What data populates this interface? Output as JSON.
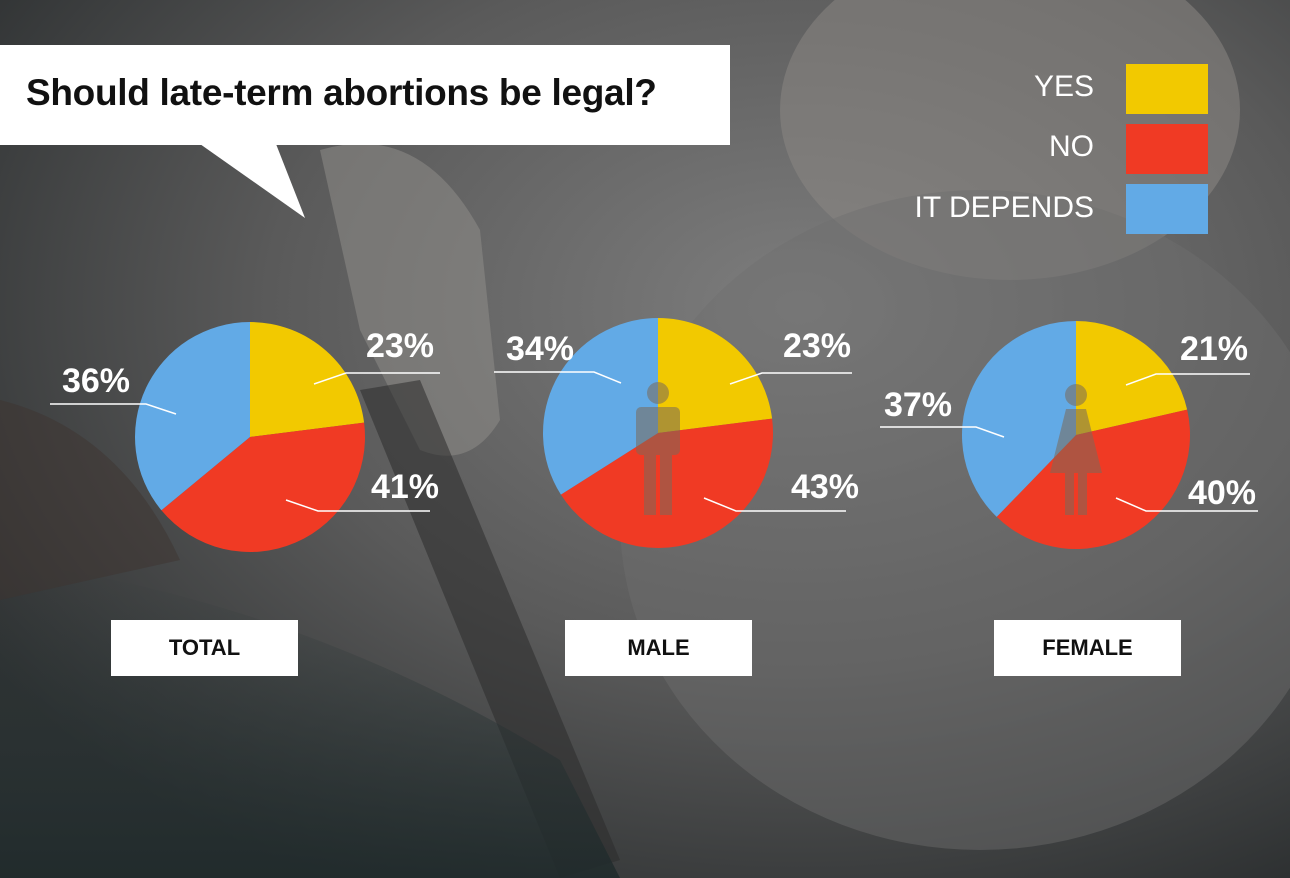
{
  "question": "Should late-term abortions be legal?",
  "legend": [
    {
      "label": "YES",
      "color": "#f2c900"
    },
    {
      "label": "NO",
      "color": "#f03a24"
    },
    {
      "label": "IT DEPENDS",
      "color": "#62aae6"
    }
  ],
  "chart_data": [
    {
      "type": "pie",
      "category": "TOTAL",
      "labels": [
        "YES",
        "NO",
        "IT DEPENDS"
      ],
      "values": [
        23,
        41,
        36
      ],
      "value_labels": [
        "23%",
        "41%",
        "36%"
      ],
      "icon": ""
    },
    {
      "type": "pie",
      "category": "MALE",
      "labels": [
        "YES",
        "NO",
        "IT DEPENDS"
      ],
      "values": [
        23,
        43,
        34
      ],
      "value_labels": [
        "23%",
        "43%",
        "34%"
      ],
      "icon": "male-person-icon"
    },
    {
      "type": "pie",
      "category": "FEMALE",
      "labels": [
        "YES",
        "NO",
        "IT DEPENDS"
      ],
      "values": [
        21,
        40,
        37
      ],
      "value_labels": [
        "21%",
        "40%",
        "37%"
      ],
      "icon": "female-person-icon"
    }
  ]
}
